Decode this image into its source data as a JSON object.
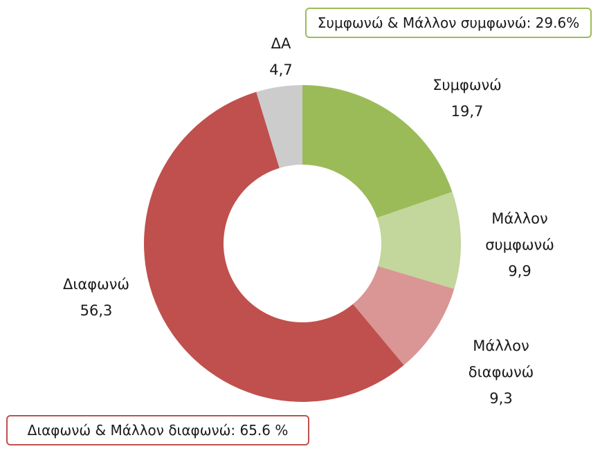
{
  "chart_data": {
    "type": "pie",
    "variant": "doughnut",
    "title": "",
    "categories": [
      "Συμφωνώ",
      "Μάλλον συμφωνώ",
      "Μάλλον διαφωνώ",
      "Διαφωνώ",
      "ΔΑ"
    ],
    "values": [
      19.7,
      9.9,
      9.3,
      56.3,
      4.7
    ],
    "value_labels": [
      "19,7",
      "9,9",
      "9,3",
      "56,3",
      "4,7"
    ],
    "colors": [
      "#9BBB59",
      "#C3D69B",
      "#D99694",
      "#C0504D",
      "#CCCCCC"
    ],
    "start_angle_deg": 0,
    "direction": "clockwise",
    "legend": "none",
    "annotations": [
      {
        "text": "Συμφωνώ & Μάλλον συμφωνώ: 29.6%",
        "border_color": "#9BBB59",
        "position": "top-right"
      },
      {
        "text": "Διαφωνώ & Μάλλον διαφωνώ: 65.6 %",
        "border_color": "#C0504D",
        "position": "bottom-left"
      }
    ]
  },
  "labels": {
    "agree": {
      "line1": "Συμφωνώ",
      "value": "19,7"
    },
    "rather_agree": {
      "line1": "Μάλλον",
      "line2": "συμφωνώ",
      "value": "9,9"
    },
    "rather_disagree": {
      "line1": "Μάλλον",
      "line2": "διαφωνώ",
      "value": "9,3"
    },
    "disagree": {
      "line1": "Διαφωνώ",
      "value": "56,3"
    },
    "dk": {
      "line1": "ΔΑ",
      "value": "4,7"
    }
  },
  "callouts": {
    "agree_total": "Συμφωνώ & Μάλλον συμφωνώ: 29.6%",
    "disagree_total": "Διαφωνώ & Μάλλον διαφωνώ: 65.6 %"
  }
}
